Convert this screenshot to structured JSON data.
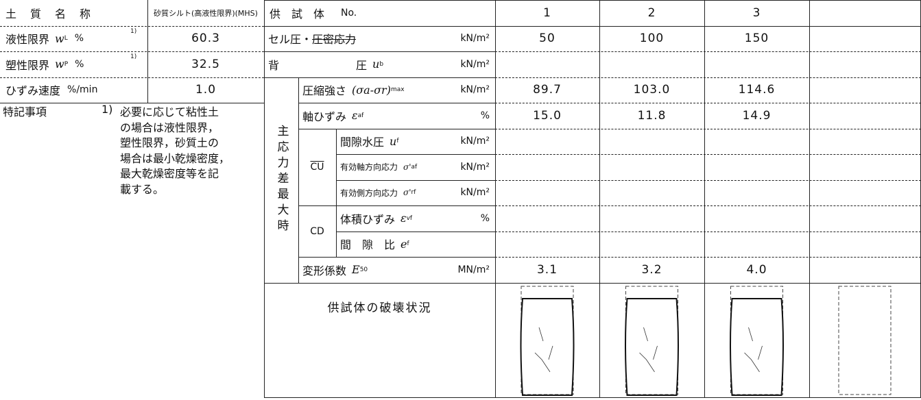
{
  "soil_info": {
    "name": {
      "label": "土　質　名　称",
      "value": "砂質シルト(高液性限界)(MHS)"
    },
    "properties": [
      {
        "label": "液性限界",
        "symbol": "w",
        "subscript": "L",
        "unit": "%",
        "note": "1)",
        "value": "60.3"
      },
      {
        "label": "塑性限界",
        "symbol": "w",
        "subscript": "P",
        "unit": "%",
        "note": "1)",
        "value": "32.5"
      },
      {
        "label": "ひずみ速度",
        "unit": "%/min",
        "value": "1.0"
      }
    ]
  },
  "remarks": {
    "label": "特記事項",
    "note": "1)",
    "lines": [
      "必要に応じて粘性土",
      "の場合は液性限界，",
      "塑性限界，砂質土の",
      "場合は最小乾燥密度，",
      "最大乾燥密度等を記",
      "載する。"
    ]
  },
  "results": {
    "header": {
      "label": "供　試　体",
      "suffix": "No.",
      "specimens": [
        "1",
        "2",
        "3"
      ]
    },
    "group_label": "主応力差最大時",
    "cu_label": "CU",
    "cd_label": "CD",
    "rows": [
      {
        "label": "セル圧・",
        "struck": "圧密応力",
        "unit": "kN/m²",
        "values": [
          "50",
          "100",
          "150"
        ]
      },
      {
        "label": "背　　　　　　　圧",
        "symbol": "u",
        "subscript": "b",
        "unit": "kN/m²"
      },
      {
        "label": "圧縮強さ",
        "symbol": "(σa-σr)",
        "subscript": "max",
        "unit": "kN/m²",
        "values": [
          "89.7",
          "103.0",
          "114.6"
        ]
      },
      {
        "label": "軸ひずみ",
        "symbol": "ε",
        "subscript": "af",
        "unit": "%",
        "values": [
          "15.0",
          "11.8",
          "14.9"
        ]
      },
      {
        "label": "間隙水圧",
        "symbol": "u",
        "subscript": "f",
        "unit": "kN/m²"
      },
      {
        "label": "有効軸方向応力",
        "symbol": "σ'",
        "subscript": "af",
        "unit": "kN/m²"
      },
      {
        "label": "有効側方向応力",
        "symbol": "σ'",
        "subscript": "rf",
        "unit": "kN/m²"
      },
      {
        "label": "体積ひずみ",
        "symbol": "ε",
        "subscript": "vf",
        "unit": "%"
      },
      {
        "label": "間　隙　比",
        "symbol": "e",
        "subscript": "f"
      },
      {
        "label": "変形係数",
        "symbol": "E",
        "subscript": "50",
        "unit": "MN/m²",
        "values": [
          "3.1",
          "3.2",
          "4.0"
        ]
      }
    ],
    "failure_label": "供試体の破壊状況"
  }
}
